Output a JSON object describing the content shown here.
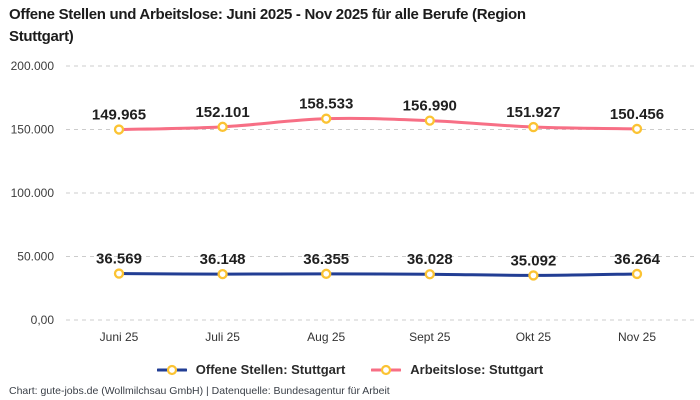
{
  "header": {
    "title": "Offene Stellen und Arbeitslose: Juni 2025 - Nov 2025 für alle Berufe (Region\nStuttgart)"
  },
  "footer": {
    "attribution": "Chart: gute-jobs.de (Wollmilchsau GmbH) | Datenquelle: Bundesagentur für Arbeit"
  },
  "chart_data": {
    "type": "line",
    "title": "Offene Stellen und Arbeitslose: Juni 2025 - Nov 2025 für alle Berufe (Region Stuttgart)",
    "categories": [
      "Juni 25",
      "Juli 25",
      "Aug 25",
      "Sept 25",
      "Okt 25",
      "Nov 25"
    ],
    "series": [
      {
        "id": "offene-stellen",
        "name": "Offene Stellen: Stuttgart",
        "color": "#223e94",
        "values": [
          36569,
          36148,
          36355,
          36028,
          35092,
          36264
        ],
        "labels": [
          "36.569",
          "36.148",
          "36.355",
          "36.028",
          "35.092",
          "36.264"
        ]
      },
      {
        "id": "arbeitslose",
        "name": "Arbeitslose: Stuttgart",
        "color": "#f76f85",
        "values": [
          149965,
          152101,
          158533,
          156990,
          151927,
          150456
        ],
        "labels": [
          "149.965",
          "152.101",
          "158.533",
          "156.990",
          "151.927",
          "150.456"
        ]
      }
    ],
    "marker_color": "#fbc333",
    "marker_fill": "#ffffff",
    "grid_color": "#cccccc",
    "y_axis": {
      "range": [
        0,
        200000
      ],
      "ticks": [
        {
          "value": 0,
          "label": "0,00"
        },
        {
          "value": 50000,
          "label": "50.000"
        },
        {
          "value": 100000,
          "label": "100.000"
        },
        {
          "value": 150000,
          "label": "150.000"
        },
        {
          "value": 200000,
          "label": "200.000"
        }
      ]
    },
    "grid": true,
    "legend_position": "bottom"
  }
}
